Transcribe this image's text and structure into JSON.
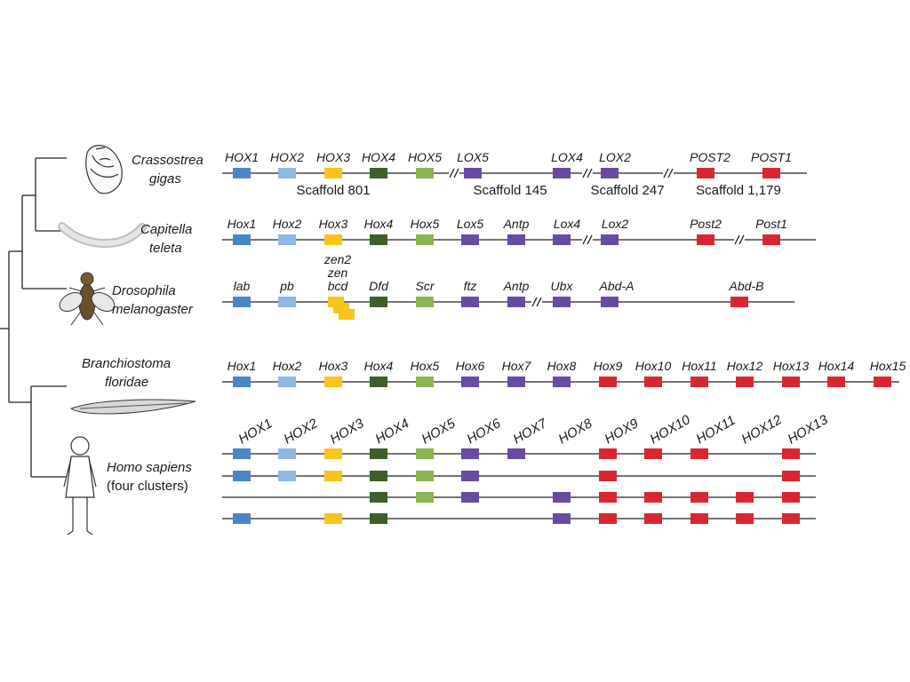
{
  "colors": {
    "hox1": "#4a86c5",
    "hox2": "#8fb8e3",
    "hox3": "#f7c51c",
    "hox4": "#3f5f2a",
    "hox5": "#8ab651",
    "central": "#6a4ba2",
    "posterior": "#d92732",
    "line": "#222222"
  },
  "species": {
    "oyster": {
      "line1": "Crassostrea",
      "line2": "gigas",
      "icon": "oyster-icon"
    },
    "capitella": {
      "line1": "Capitella",
      "line2": "teleta",
      "icon": "worm-icon"
    },
    "drosophila": {
      "line1": "Drosophila",
      "line2": "melanogaster",
      "icon": "fly-icon"
    },
    "amphioxus": {
      "line1": "Branchiostoma",
      "line2": "floridae",
      "icon": "lancelet-icon"
    },
    "human": {
      "line1": "Homo sapiens",
      "line2": "(four clusters)",
      "icon": "human-icon"
    }
  },
  "oyster_genes": [
    "HOX1",
    "HOX2",
    "HOX3",
    "HOX4",
    "HOX5",
    "LOX5",
    "LOX4",
    "LOX2",
    "POST2",
    "POST1"
  ],
  "scaffolds": [
    "Scaffold 801",
    "Scaffold 145",
    "Scaffold 247",
    "Scaffold 1,179"
  ],
  "capitella_genes": [
    "Hox1",
    "Hox2",
    "Hox3",
    "Hox4",
    "Hox5",
    "Lox5",
    "Antp",
    "Lox4",
    "Lox2",
    "Post2",
    "Post1"
  ],
  "drosophila_genes": [
    "lab",
    "pb",
    "zen2",
    "zen",
    "bcd",
    "Dfd",
    "Scr",
    "ftz",
    "Antp",
    "Ubx",
    "Abd-A",
    "Abd-B"
  ],
  "amphioxus_genes": [
    "Hox1",
    "Hox2",
    "Hox3",
    "Hox4",
    "Hox5",
    "Hox6",
    "Hox7",
    "Hox8",
    "Hox9",
    "Hox10",
    "Hox11",
    "Hox12",
    "Hox13",
    "Hox14",
    "Hox15"
  ],
  "human_genes": [
    "HOX1",
    "HOX2",
    "HOX3",
    "HOX4",
    "HOX5",
    "HOX6",
    "HOX7",
    "HOX8",
    "HOX9",
    "HOX10",
    "HOX11",
    "HOX12",
    "HOX13"
  ],
  "human_clusters": [
    {
      "present": [
        1,
        2,
        3,
        4,
        5,
        6,
        7,
        9,
        10,
        11,
        13
      ]
    },
    {
      "present": [
        1,
        2,
        3,
        4,
        5,
        6,
        9,
        13
      ]
    },
    {
      "present": [
        4,
        5,
        6,
        8,
        9,
        10,
        11,
        12,
        13
      ]
    },
    {
      "present": [
        1,
        3,
        4,
        8,
        9,
        10,
        11,
        12,
        13
      ]
    }
  ]
}
